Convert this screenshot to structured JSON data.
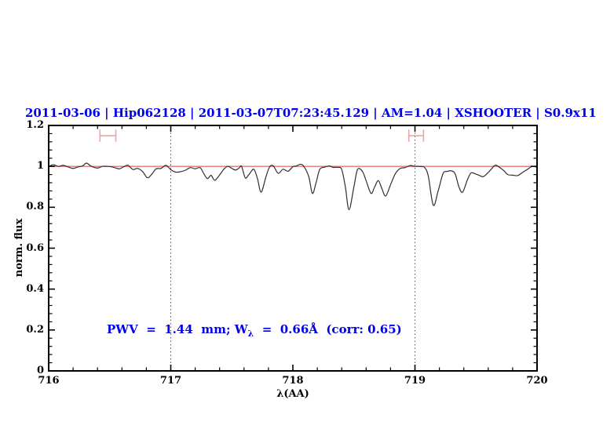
{
  "figure": {
    "background": "#ffffff"
  },
  "annotation": {
    "pre": "PWV  =  1.44  mm; W",
    "sub": "λ",
    "post": "  =  0.66Å  (corr: 0.65)",
    "color": "#0000e8"
  },
  "chart_data": {
    "type": "line",
    "title": "2011-03-06 | Hip062128 | 2011-03-07T07:23:45.129 | AM=1.04 | XSHOOTER | S0.9x11",
    "xlabel": "λ(AA)",
    "ylabel": "norm. flux",
    "xlim": [
      716,
      720
    ],
    "ylim": [
      0,
      1.2
    ],
    "grid": false,
    "xticks_major": [
      716,
      717,
      718,
      719,
      720
    ],
    "xtick_labels": [
      "716",
      "717",
      "718",
      "719",
      "720"
    ],
    "yticks_major": [
      0,
      0.2,
      0.4,
      0.6,
      0.8,
      1,
      1.2
    ],
    "ytick_labels": [
      "0",
      "0.2",
      "0.4",
      "0.6",
      "0.8",
      "1",
      "1.2"
    ],
    "minor_x_step": 0.2,
    "minor_y_step": 0.04,
    "dotted_vlines": [
      717,
      719
    ],
    "continuum_line": {
      "y": 1.0
    },
    "range_markers": [
      {
        "x1": 716.42,
        "x2": 716.55,
        "y": 1.15,
        "cap_half_height": 0.03
      },
      {
        "x1": 718.95,
        "x2": 719.07,
        "y": 1.15,
        "cap_half_height": 0.03
      }
    ],
    "colors": {
      "title": "#0000e8",
      "annotation": "#0000e8",
      "spectrum": "#2f2f2f",
      "continuum": "#e87474",
      "marker": "#f2a2a2",
      "axis": "#000000",
      "dotted": "#555555"
    },
    "series": [
      {
        "name": "normalized-spectrum",
        "x": [
          716.0,
          716.04,
          716.08,
          716.12,
          716.16,
          716.2,
          716.24,
          716.28,
          716.31,
          716.35,
          716.4,
          716.44,
          716.48,
          716.52,
          716.55,
          716.58,
          716.62,
          716.65,
          716.69,
          716.73,
          716.77,
          716.81,
          716.85,
          716.88,
          716.92,
          716.96,
          717.0,
          717.04,
          717.08,
          717.12,
          717.16,
          717.2,
          717.24,
          717.27,
          717.3,
          717.33,
          717.36,
          717.4,
          717.44,
          717.47,
          717.5,
          717.53,
          717.56,
          717.58,
          717.61,
          717.64,
          717.68,
          717.71,
          717.74,
          717.78,
          717.81,
          717.84,
          717.88,
          717.92,
          717.96,
          718.0,
          718.03,
          718.06,
          718.09,
          718.13,
          718.16,
          718.19,
          718.22,
          718.26,
          718.3,
          718.33,
          718.37,
          718.4,
          718.43,
          718.46,
          718.5,
          718.53,
          718.57,
          718.6,
          718.64,
          718.67,
          718.7,
          718.73,
          718.76,
          718.8,
          718.84,
          718.88,
          718.92,
          718.96,
          719.0,
          719.04,
          719.08,
          719.11,
          719.15,
          719.19,
          719.23,
          719.26,
          719.3,
          719.33,
          719.36,
          719.39,
          719.43,
          719.46,
          719.5,
          719.53,
          719.56,
          719.6,
          719.63,
          719.66,
          719.7,
          719.73,
          719.76,
          719.8,
          719.84,
          719.88,
          719.92,
          719.96,
          720.0
        ],
        "y": [
          1.0,
          1.008,
          1.0,
          1.005,
          0.997,
          0.99,
          0.997,
          1.003,
          1.016,
          1.0,
          0.992,
          1.0,
          1.0,
          0.997,
          0.992,
          0.988,
          1.0,
          1.005,
          0.985,
          0.99,
          0.974,
          0.944,
          0.966,
          0.988,
          0.99,
          1.005,
          0.984,
          0.972,
          0.974,
          0.981,
          0.994,
          0.988,
          0.994,
          0.965,
          0.94,
          0.956,
          0.932,
          0.958,
          0.99,
          1.0,
          0.99,
          0.982,
          0.992,
          1.0,
          0.944,
          0.96,
          0.986,
          0.94,
          0.874,
          0.95,
          0.998,
          1.002,
          0.966,
          0.986,
          0.976,
          0.998,
          1.002,
          1.01,
          1.0,
          0.95,
          0.868,
          0.92,
          0.985,
          0.996,
          1.002,
          0.995,
          0.995,
          0.985,
          0.9,
          0.788,
          0.9,
          0.985,
          0.975,
          0.93,
          0.868,
          0.9,
          0.93,
          0.89,
          0.855,
          0.91,
          0.965,
          0.99,
          0.994,
          1.004,
          1.0,
          1.0,
          0.994,
          0.95,
          0.81,
          0.88,
          0.965,
          0.975,
          0.978,
          0.962,
          0.9,
          0.874,
          0.935,
          0.968,
          0.962,
          0.955,
          0.95,
          0.97,
          0.99,
          1.006,
          0.992,
          0.978,
          0.96,
          0.957,
          0.955,
          0.97,
          0.985,
          1.0,
          0.996
        ]
      }
    ]
  }
}
